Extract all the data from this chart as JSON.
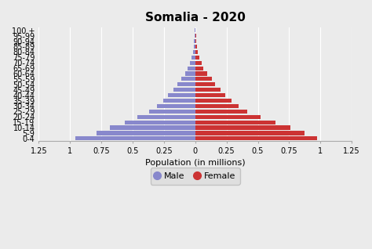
{
  "title": "Somalia - 2020",
  "xlabel": "Population (in millions)",
  "age_groups": [
    "0-4",
    "5-9",
    "10-14",
    "15-19",
    "20-24",
    "25-29",
    "30-34",
    "35-39",
    "40-44",
    "45-49",
    "50-54",
    "55-59",
    "60-64",
    "65-69",
    "70-74",
    "75-79",
    "80-84",
    "85-89",
    "90-94",
    "95-99",
    "100 +"
  ],
  "male": [
    0.96,
    0.79,
    0.68,
    0.565,
    0.46,
    0.37,
    0.305,
    0.255,
    0.215,
    0.175,
    0.14,
    0.11,
    0.08,
    0.06,
    0.045,
    0.03,
    0.02,
    0.013,
    0.01,
    0.006,
    0.003
  ],
  "female": [
    0.975,
    0.87,
    0.76,
    0.64,
    0.52,
    0.415,
    0.345,
    0.29,
    0.24,
    0.2,
    0.16,
    0.13,
    0.095,
    0.067,
    0.05,
    0.035,
    0.022,
    0.012,
    0.009,
    0.005,
    0.002
  ],
  "male_color": "#8888cc",
  "female_color": "#cc3333",
  "bg_color": "#ebebeb",
  "xlim": 1.25,
  "bar_height": 0.75,
  "xticks": [
    -1.25,
    -1.0,
    -0.75,
    -0.5,
    -0.25,
    0,
    0.25,
    0.5,
    0.75,
    1.0,
    1.25
  ],
  "xticklabels": [
    "1.25",
    "1",
    "0.75",
    "0.5",
    "0.25",
    "0",
    "0.25",
    "0.5",
    "0.75",
    "1",
    "1.25"
  ],
  "title_fontsize": 11,
  "axis_fontsize": 7,
  "xlabel_fontsize": 8,
  "legend_fontsize": 8
}
